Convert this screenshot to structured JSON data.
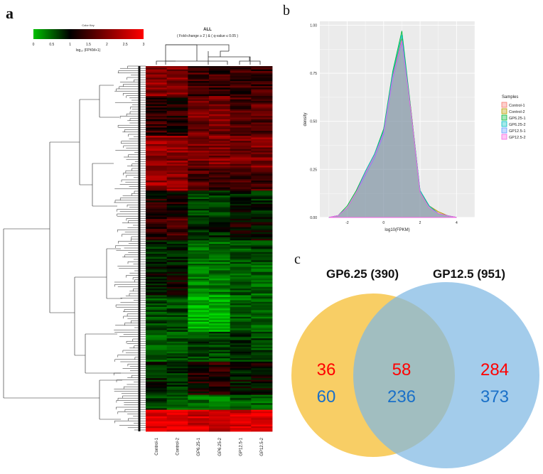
{
  "panels": {
    "a": "a",
    "b": "b",
    "c": "c"
  },
  "heatmap": {
    "title": "ALL",
    "subtitle": "( Fold-change ≥ 2 ) & ( q-value ≤ 0.05 )",
    "colorkey": {
      "title": "Color Key",
      "label": "log₁₀ (FPKM+1)",
      "ticks": [
        "0",
        "0.5",
        "1",
        "1.5",
        "2",
        "2.5",
        "3"
      ],
      "low_color": "#00c000",
      "mid_color": "#000000",
      "high_color": "#ff0000"
    },
    "columns": [
      "Control-1",
      "Control-2",
      "GP6.25-1",
      "GP6.25-2",
      "GP12.5-1",
      "GP12.5-2"
    ]
  },
  "chart_data": [
    {
      "type": "area",
      "title": "",
      "xlabel": "log10(FPKM)",
      "ylabel": "density",
      "x_ticks": [
        "-2",
        "0",
        "2",
        "4"
      ],
      "y_ticks": [
        "0.00",
        "0.25",
        "0.50",
        "0.75",
        "1.00"
      ],
      "xlim": [
        -3.5,
        5.0
      ],
      "ylim": [
        0,
        1.02
      ],
      "grid": true,
      "legend_title": "Samples",
      "legend_position": "right",
      "x": [
        -3.0,
        -2.5,
        -2.0,
        -1.5,
        -1.0,
        -0.5,
        0.0,
        0.5,
        1.0,
        1.5,
        2.0,
        2.5,
        3.0,
        3.5,
        4.0
      ],
      "series": [
        {
          "name": "Control-1",
          "fill": "#f8766d",
          "line": "#f8766d",
          "values": [
            0.0,
            0.01,
            0.05,
            0.13,
            0.23,
            0.32,
            0.44,
            0.73,
            0.92,
            0.55,
            0.13,
            0.06,
            0.03,
            0.01,
            0.0
          ]
        },
        {
          "name": "Control-2",
          "fill": "#b79f00",
          "line": "#b79f00",
          "values": [
            0.0,
            0.01,
            0.05,
            0.13,
            0.23,
            0.32,
            0.45,
            0.74,
            0.93,
            0.56,
            0.13,
            0.06,
            0.03,
            0.01,
            0.0
          ]
        },
        {
          "name": "GP6.25-1",
          "fill": "#00ba38",
          "line": "#00ba38",
          "values": [
            0.0,
            0.01,
            0.06,
            0.14,
            0.24,
            0.33,
            0.46,
            0.76,
            0.97,
            0.56,
            0.14,
            0.06,
            0.02,
            0.01,
            0.0
          ]
        },
        {
          "name": "GP6.25-2",
          "fill": "#00bfc4",
          "line": "#00bfc4",
          "values": [
            0.0,
            0.01,
            0.05,
            0.13,
            0.24,
            0.33,
            0.45,
            0.75,
            0.95,
            0.55,
            0.14,
            0.06,
            0.02,
            0.01,
            0.0
          ]
        },
        {
          "name": "GP12.5-1",
          "fill": "#619cff",
          "line": "#619cff",
          "values": [
            0.0,
            0.01,
            0.05,
            0.13,
            0.22,
            0.31,
            0.43,
            0.72,
            0.91,
            0.55,
            0.13,
            0.05,
            0.02,
            0.01,
            0.0
          ]
        },
        {
          "name": "GP12.5-2",
          "fill": "#f564e3",
          "line": "#f564e3",
          "values": [
            0.0,
            0.01,
            0.05,
            0.13,
            0.23,
            0.32,
            0.44,
            0.73,
            0.92,
            0.55,
            0.13,
            0.05,
            0.02,
            0.01,
            0.0
          ]
        }
      ]
    }
  ],
  "venn": {
    "left_title": "GP6.25 (390)",
    "right_title": "GP12.5 (951)",
    "left_color": "#f7c64a",
    "right_color": "#7fb8e3",
    "up_color": "#ff0000",
    "down_color": "#1a70c8",
    "left_only": {
      "up": "36",
      "down": "60"
    },
    "overlap": {
      "up": "58",
      "down": "236"
    },
    "right_only": {
      "up": "284",
      "down": "373"
    }
  }
}
